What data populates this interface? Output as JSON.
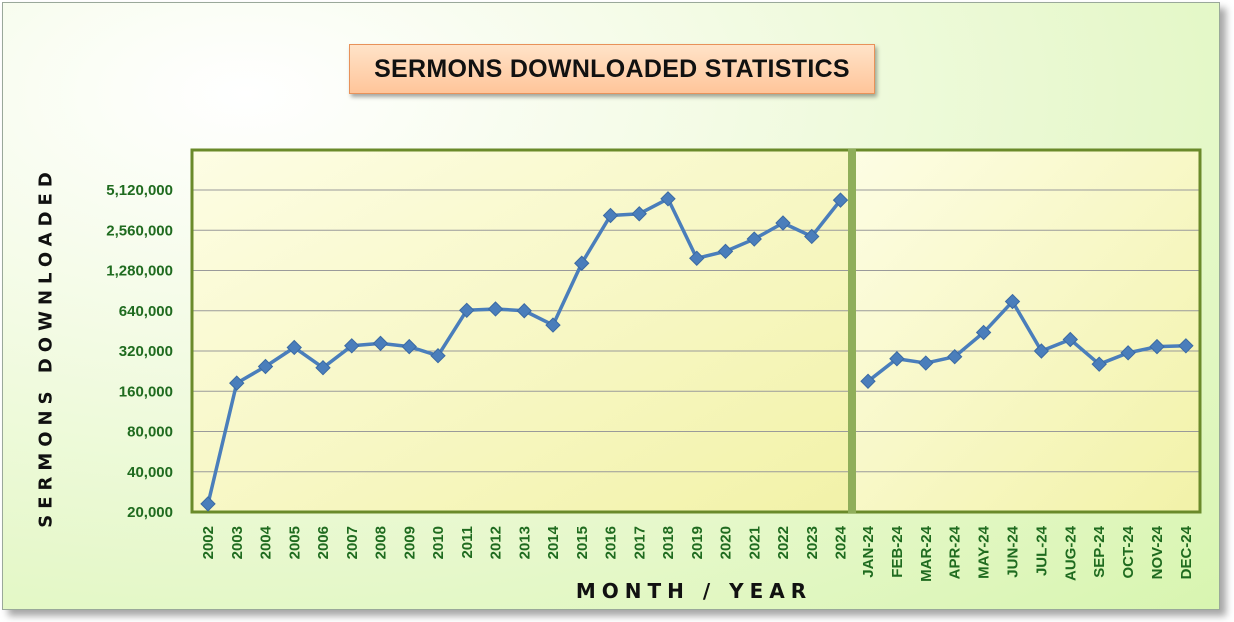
{
  "chart_data": {
    "type": "line",
    "title": "SERMONS DOWNLOADED STATISTICS",
    "xlabel": "MONTH / YEAR",
    "ylabel": "SERMONS DOWNLOADED",
    "y_scale": "log2",
    "ylim": [
      20000,
      5120000
    ],
    "y_ticks": [
      "20,000",
      "40,000",
      "80,000",
      "160,000",
      "320,000",
      "640,000",
      "1,280,000",
      "2,560,000",
      "5,120,000"
    ],
    "y_tick_values": [
      20000,
      40000,
      80000,
      160000,
      320000,
      640000,
      1280000,
      2560000,
      5120000
    ],
    "grid": true,
    "line_color": "#4a7ebb",
    "panels": [
      {
        "categories": [
          "2002",
          "2003",
          "2004",
          "2005",
          "2006",
          "2007",
          "2008",
          "2009",
          "2010",
          "2011",
          "2012",
          "2013",
          "2014",
          "2015",
          "2016",
          "2017",
          "2018",
          "2019",
          "2020",
          "2021",
          "2022",
          "2023",
          "2024"
        ],
        "values": [
          23000,
          184000,
          245000,
          340000,
          240000,
          350000,
          365000,
          345000,
          295000,
          645000,
          660000,
          640000,
          500000,
          1450000,
          3300000,
          3400000,
          4400000,
          1580000,
          1780000,
          2200000,
          2900000,
          2300000,
          4300000
        ]
      },
      {
        "categories": [
          "JAN-24",
          "FEB-24",
          "MAR-24",
          "APR-24",
          "MAY-24",
          "JUN-24",
          "JUL-24",
          "AUG-24",
          "SEP-24",
          "OCT-24",
          "NOV-24",
          "DEC-24"
        ],
        "values": [
          190000,
          280000,
          260000,
          290000,
          440000,
          750000,
          320000,
          390000,
          255000,
          310000,
          345000,
          350000
        ]
      }
    ]
  }
}
